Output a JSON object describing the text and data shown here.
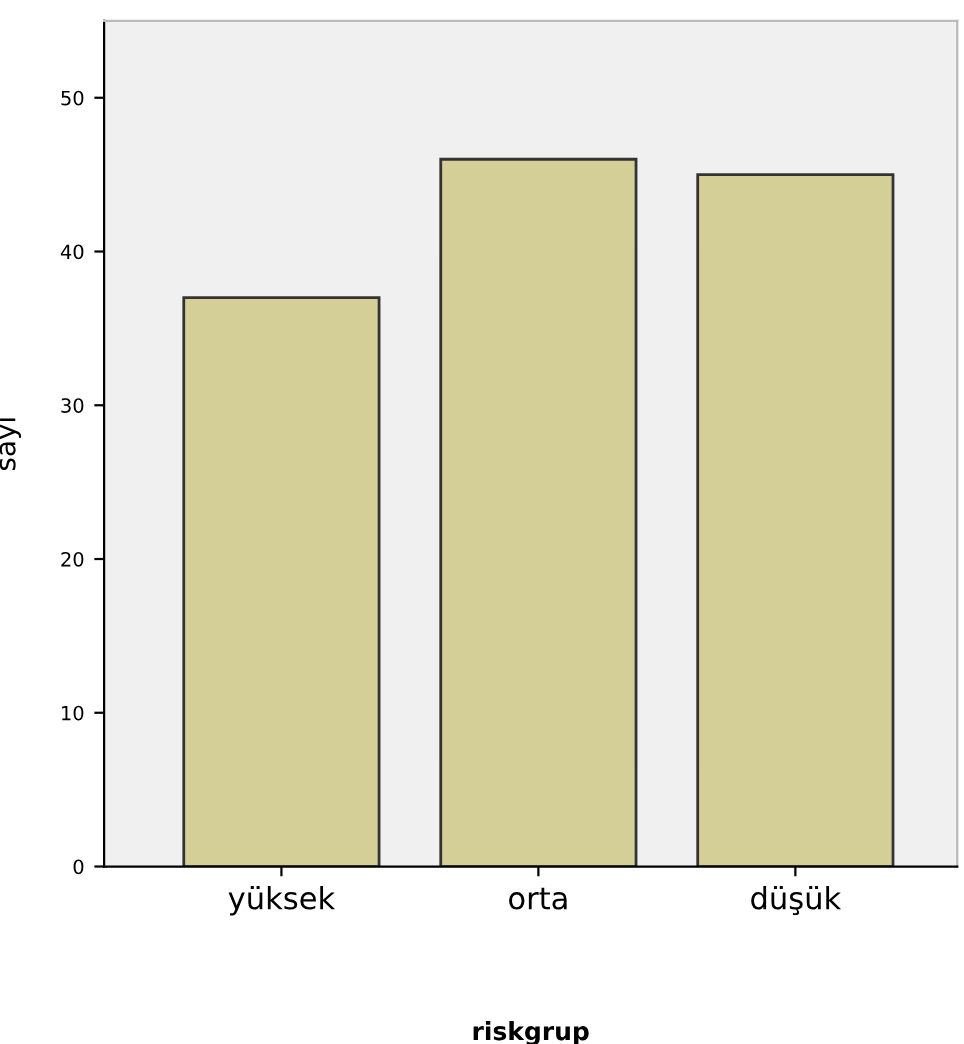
{
  "chart_data": {
    "type": "bar",
    "xlabel": "riskgrup",
    "ylabel": "sayı",
    "categories": [
      "yüksek",
      "orta",
      "düşük"
    ],
    "values": [
      37,
      46,
      45
    ],
    "color": "#d3cf97",
    "ylim": [
      0,
      55
    ],
    "yticks": [
      0,
      10,
      20,
      30,
      40,
      50
    ],
    "grid": false
  }
}
